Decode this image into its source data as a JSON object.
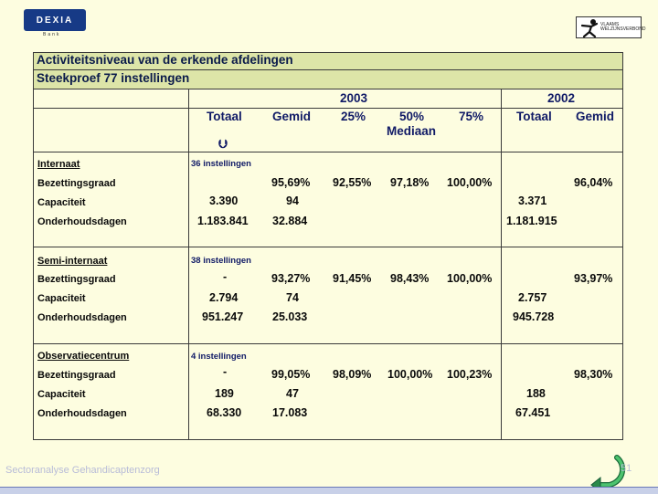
{
  "logos": {
    "left_name": "DEXIA",
    "left_sub": "Bank",
    "right_text": "VLAAMS\nWELZIJNSVERBOND"
  },
  "title": {
    "line1": "Activiteitsniveau van de erkende afdelingen",
    "line2": "Steekproef 77 instellingen"
  },
  "columns": {
    "year_2003": "2003",
    "year_2002": "2002",
    "totaal_2003": "Totaal",
    "gemid_2003": "Gemid",
    "p25": "25%",
    "p50": "50%",
    "mediaan": "Mediaan",
    "p75": "75%",
    "totaal_2002": "Totaal",
    "gemid_2002": "Gemid"
  },
  "groups": [
    {
      "name": "Internaat",
      "count": "36 instellingen",
      "rows": [
        {
          "label": "Bezettingsgraad",
          "totaal_2003": "",
          "gemid_2003": "95,69%",
          "p25": "92,55%",
          "p50": "97,18%",
          "p75": "100,00%",
          "totaal_2002": "",
          "gemid_2002": "96,04%"
        },
        {
          "label": "Capaciteit",
          "totaal_2003": "3.390",
          "gemid_2003": "94",
          "p25": "",
          "p50": "",
          "p75": "",
          "totaal_2002": "3.371",
          "gemid_2002": ""
        },
        {
          "label": "Onderhoudsdagen",
          "totaal_2003": "1.183.841",
          "gemid_2003": "32.884",
          "p25": "",
          "p50": "",
          "p75": "",
          "totaal_2002": "1.181.915",
          "gemid_2002": ""
        }
      ]
    },
    {
      "name": "Semi-internaat",
      "count": "38 instellingen",
      "rows": [
        {
          "label": "Bezettingsgraad",
          "totaal_2003": "-",
          "gemid_2003": "93,27%",
          "p25": "91,45%",
          "p50": "98,43%",
          "p75": "100,00%",
          "totaal_2002": "",
          "gemid_2002": "93,97%"
        },
        {
          "label": "Capaciteit",
          "totaal_2003": "2.794",
          "gemid_2003": "74",
          "p25": "",
          "p50": "",
          "p75": "",
          "totaal_2002": "2.757",
          "gemid_2002": ""
        },
        {
          "label": "Onderhoudsdagen",
          "totaal_2003": "951.247",
          "gemid_2003": "25.033",
          "p25": "",
          "p50": "",
          "p75": "",
          "totaal_2002": "945.728",
          "gemid_2002": ""
        }
      ]
    },
    {
      "name": "Observatiecentrum",
      "count": "4 instellingen",
      "rows": [
        {
          "label": "Bezettingsgraad",
          "totaal_2003": "-",
          "gemid_2003": "99,05%",
          "p25": "98,09%",
          "p50": "100,00%",
          "p75": "100,23%",
          "totaal_2002": "",
          "gemid_2002": "98,30%"
        },
        {
          "label": "Capaciteit",
          "totaal_2003": "189",
          "gemid_2003": "47",
          "p25": "",
          "p50": "",
          "p75": "",
          "totaal_2002": "188",
          "gemid_2002": ""
        },
        {
          "label": "Onderhoudsdagen",
          "totaal_2003": "68.330",
          "gemid_2003": "17.083",
          "p25": "",
          "p50": "",
          "p75": "",
          "totaal_2002": "67.451",
          "gemid_2002": ""
        }
      ]
    }
  ],
  "footer": {
    "title": "Sectoranalyse Gehandicaptenzorg",
    "page": "51"
  },
  "icons": {
    "arrow": "down-arrow-icon",
    "return": "return-arrow-icon"
  },
  "colors": {
    "header_band": "#dde5a8",
    "background": "#fdfde0",
    "heading_text": "#101a66",
    "logo_blue": "#173a86"
  }
}
